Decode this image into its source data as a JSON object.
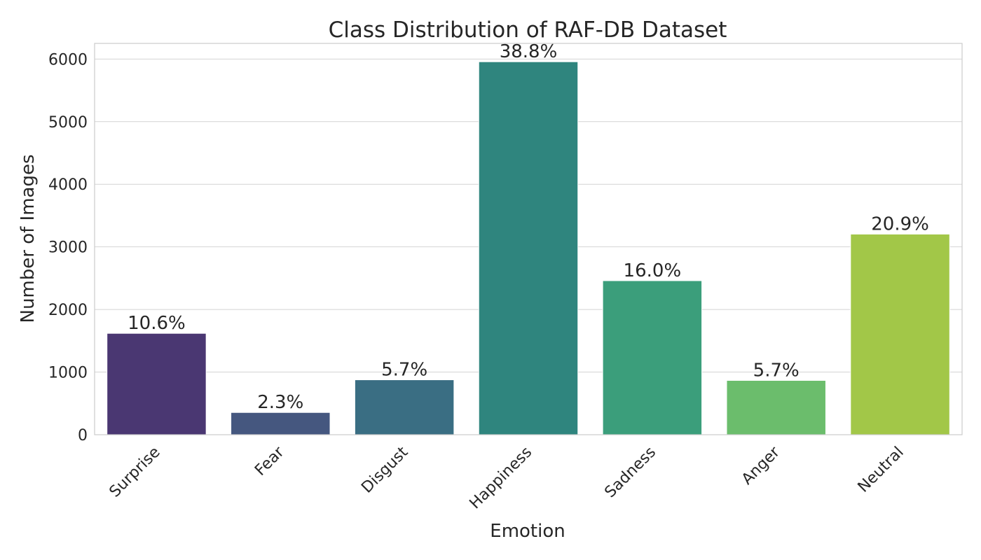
{
  "chart_data": {
    "type": "bar",
    "title": "Class Distribution of RAF-DB Dataset",
    "xlabel": "Emotion",
    "ylabel": "Number of Images",
    "categories": [
      "Surprise",
      "Fear",
      "Disgust",
      "Happiness",
      "Sadness",
      "Anger",
      "Neutral"
    ],
    "values": [
      1619,
      355,
      877,
      5957,
      2460,
      867,
      3204
    ],
    "data_labels": [
      "10.6%",
      "2.3%",
      "5.7%",
      "38.8%",
      "16.0%",
      "5.7%",
      "20.9%"
    ],
    "colors": [
      "#4a3772",
      "#45577f",
      "#3a6e83",
      "#2f857e",
      "#3b9e7b",
      "#6bbd6c",
      "#a2c748"
    ],
    "ylim": [
      0,
      6250
    ],
    "yticks": [
      0,
      1000,
      2000,
      3000,
      4000,
      5000,
      6000
    ],
    "grid": "horizontal",
    "legend": "none"
  }
}
